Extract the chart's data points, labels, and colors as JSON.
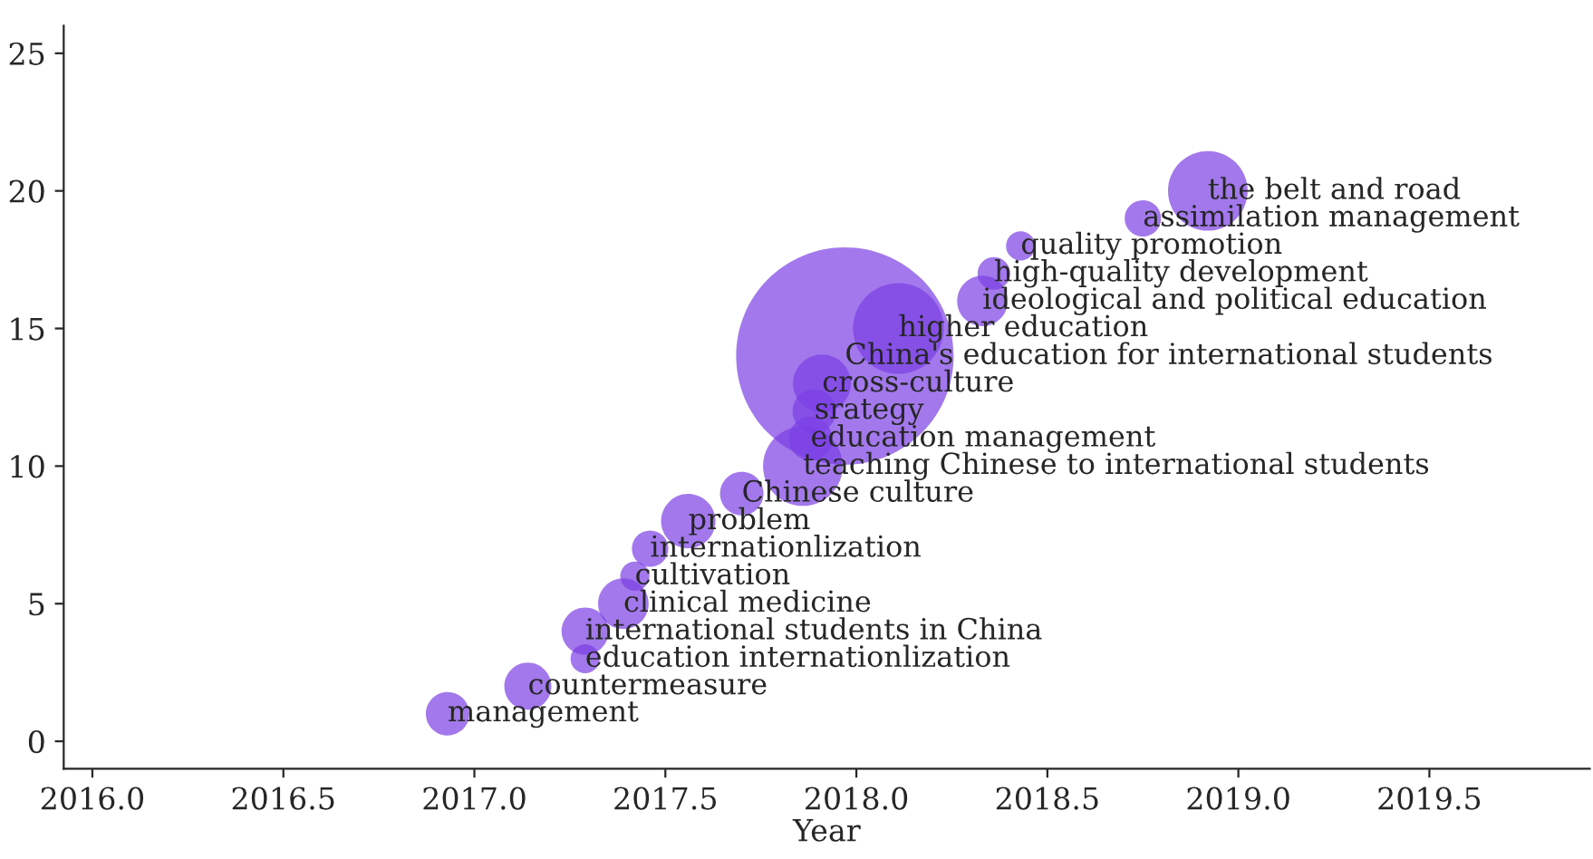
{
  "chart_data": {
    "type": "bubble",
    "xlabel": "Year",
    "x": [
      2016.93,
      2017.14,
      2017.29,
      2017.29,
      2017.39,
      2017.42,
      2017.46,
      2017.56,
      2017.7,
      2017.86,
      2017.88,
      2017.89,
      2017.91,
      2017.97,
      2018.11,
      2018.33,
      2018.36,
      2018.43,
      2018.75,
      2018.92
    ],
    "series": [
      {
        "color": "#7b3fe4",
        "values": [
          1,
          2,
          3,
          4,
          5,
          6,
          7,
          8,
          9,
          10,
          11,
          12,
          13,
          14,
          15,
          16,
          17,
          18,
          19,
          20
        ],
        "sizes": [
          0.04,
          0.047,
          0.018,
          0.047,
          0.054,
          0.018,
          0.028,
          0.0625,
          0.04,
          0.134,
          0.04,
          0.04,
          0.071,
          1,
          0.174,
          0.054,
          0.0225,
          0.018,
          0.028,
          0.134
        ]
      }
    ],
    "xlim": [
      2015.925,
      2019.92
    ],
    "ylim": [
      -1,
      26
    ],
    "xticks": [
      {
        "value": 2016,
        "label": "2016.0"
      },
      2016.5,
      {
        "value": 2017,
        "label": "2017.0"
      },
      2017.5,
      {
        "value": 2018,
        "label": "2018.0"
      },
      2018.5,
      {
        "value": 2019,
        "label": "2019.0"
      },
      2019.5
    ],
    "yticks": [
      0,
      5,
      10,
      15,
      20,
      25
    ],
    "grid": false,
    "annotations": [
      {
        "text": "management",
        "x": 2016.93,
        "y": 1
      },
      {
        "text": "countermeasure",
        "x": 2017.14,
        "y": 2
      },
      {
        "text": "education internationlization",
        "x": 2017.29,
        "y": 3
      },
      {
        "text": "international students in China",
        "x": 2017.29,
        "y": 4
      },
      {
        "text": "clinical medicine",
        "x": 2017.39,
        "y": 5
      },
      {
        "text": "cultivation",
        "x": 2017.42,
        "y": 6
      },
      {
        "text": "internationlization",
        "x": 2017.46,
        "y": 7
      },
      {
        "text": "problem",
        "x": 2017.56,
        "y": 8
      },
      {
        "text": "Chinese culture",
        "x": 2017.7,
        "y": 9
      },
      {
        "text": "teaching Chinese to international students",
        "x": 2017.86,
        "y": 10
      },
      {
        "text": "education management",
        "x": 2017.88,
        "y": 11
      },
      {
        "text": "srategy",
        "x": 2017.89,
        "y": 12
      },
      {
        "text": "cross-culture",
        "x": 2017.91,
        "y": 13
      },
      {
        "text": "China's education for international students",
        "x": 2017.97,
        "y": 14
      },
      {
        "text": "higher education",
        "x": 2018.11,
        "y": 15
      },
      {
        "text": "ideological and political education",
        "x": 2018.33,
        "y": 16
      },
      {
        "text": "high-quality development",
        "x": 2018.36,
        "y": 17
      },
      {
        "text": "quality promotion",
        "x": 2018.43,
        "y": 18
      },
      {
        "text": "assimilation management",
        "x": 2018.75,
        "y": 19
      },
      {
        "text": "the belt and road",
        "x": 2018.92,
        "y": 20
      }
    ]
  }
}
